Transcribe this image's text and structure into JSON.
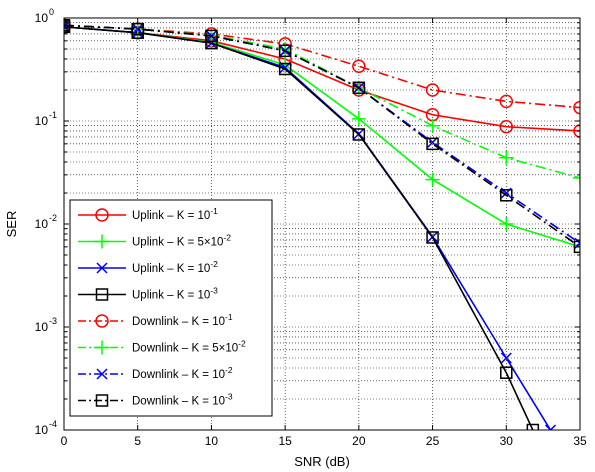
{
  "chart_data": {
    "type": "line",
    "xlabel": "SNR (dB)",
    "ylabel": "SER",
    "xlim": [
      0,
      35
    ],
    "ylim": [
      0.0001,
      1
    ],
    "yscale": "log",
    "grid": true,
    "legend_position": "bottom-left",
    "x_ticks": [
      "0",
      "5",
      "10",
      "15",
      "20",
      "25",
      "30",
      "35"
    ],
    "y_ticks": [
      {
        "base": "10",
        "exp": "0"
      },
      {
        "base": "10",
        "exp": "-1"
      },
      {
        "base": "10",
        "exp": "-2"
      },
      {
        "base": "10",
        "exp": "-3"
      },
      {
        "base": "10",
        "exp": "-4"
      }
    ],
    "series": [
      {
        "name": "Uplink – K = 10⁻¹",
        "color": "#ff0000",
        "dash": "solid",
        "marker": "circle",
        "x": [
          0,
          5,
          10,
          15,
          20,
          25,
          30,
          35
        ],
        "y": [
          0.82,
          0.72,
          0.6,
          0.4,
          0.2,
          0.115,
          0.088,
          0.08
        ]
      },
      {
        "name": "Uplink – K = 5×10⁻²",
        "color": "#00ff00",
        "dash": "solid",
        "marker": "plus",
        "x": [
          0,
          5,
          10,
          15,
          20,
          25,
          30,
          35
        ],
        "y": [
          0.82,
          0.72,
          0.58,
          0.35,
          0.105,
          0.027,
          0.01,
          0.006
        ]
      },
      {
        "name": "Uplink – K = 10⁻²",
        "color": "#0000ff",
        "dash": "solid",
        "marker": "x",
        "x": [
          0,
          5,
          10,
          15,
          20,
          25,
          30,
          33
        ],
        "y": [
          0.82,
          0.72,
          0.57,
          0.33,
          0.075,
          0.0075,
          0.0005,
          0.0001
        ]
      },
      {
        "name": "Uplink – K = 10⁻³",
        "color": "#000000",
        "dash": "solid",
        "marker": "square",
        "x": [
          0,
          5,
          10,
          15,
          20,
          25,
          30,
          31.8
        ],
        "y": [
          0.82,
          0.72,
          0.57,
          0.32,
          0.074,
          0.0074,
          0.00036,
          0.0001
        ]
      },
      {
        "name": "Downlink – K = 10⁻¹",
        "color": "#ff0000",
        "dash": "dashdot",
        "marker": "circle",
        "x": [
          0,
          5,
          10,
          15,
          20,
          25,
          30,
          35
        ],
        "y": [
          0.85,
          0.78,
          0.7,
          0.56,
          0.34,
          0.2,
          0.155,
          0.135
        ]
      },
      {
        "name": "Downlink – K = 5×10⁻²",
        "color": "#00ff00",
        "dash": "dashdot",
        "marker": "plus",
        "x": [
          0,
          5,
          10,
          15,
          20,
          25,
          30,
          35
        ],
        "y": [
          0.85,
          0.78,
          0.68,
          0.5,
          0.21,
          0.09,
          0.044,
          0.028
        ]
      },
      {
        "name": "Downlink – K = 10⁻²",
        "color": "#0000ff",
        "dash": "dashdot",
        "marker": "x",
        "x": [
          0,
          5,
          10,
          15,
          20,
          25,
          30,
          35
        ],
        "y": [
          0.85,
          0.78,
          0.67,
          0.48,
          0.21,
          0.062,
          0.02,
          0.0065
        ]
      },
      {
        "name": "Downlink – K = 10⁻³",
        "color": "#000000",
        "dash": "dashdot",
        "marker": "square",
        "x": [
          0,
          5,
          10,
          15,
          20,
          25,
          30,
          35
        ],
        "y": [
          0.85,
          0.78,
          0.67,
          0.48,
          0.21,
          0.06,
          0.019,
          0.006
        ]
      }
    ],
    "legend_labels": [
      {
        "prefix": "Uplink – K = ",
        "base": "10",
        "exp": "-1"
      },
      {
        "prefix": "Uplink – K = ",
        "base": "5×10",
        "exp": "-2"
      },
      {
        "prefix": "Uplink – K = ",
        "base": "10",
        "exp": "-2"
      },
      {
        "prefix": "Uplink – K = ",
        "base": "10",
        "exp": "-3"
      },
      {
        "prefix": "Downlink – K = ",
        "base": "10",
        "exp": "-1"
      },
      {
        "prefix": "Downlink – K = ",
        "base": "5×10",
        "exp": "-2"
      },
      {
        "prefix": "Downlink – K = ",
        "base": "10",
        "exp": "-2"
      },
      {
        "prefix": "Downlink – K = ",
        "base": "10",
        "exp": "-3"
      }
    ]
  }
}
